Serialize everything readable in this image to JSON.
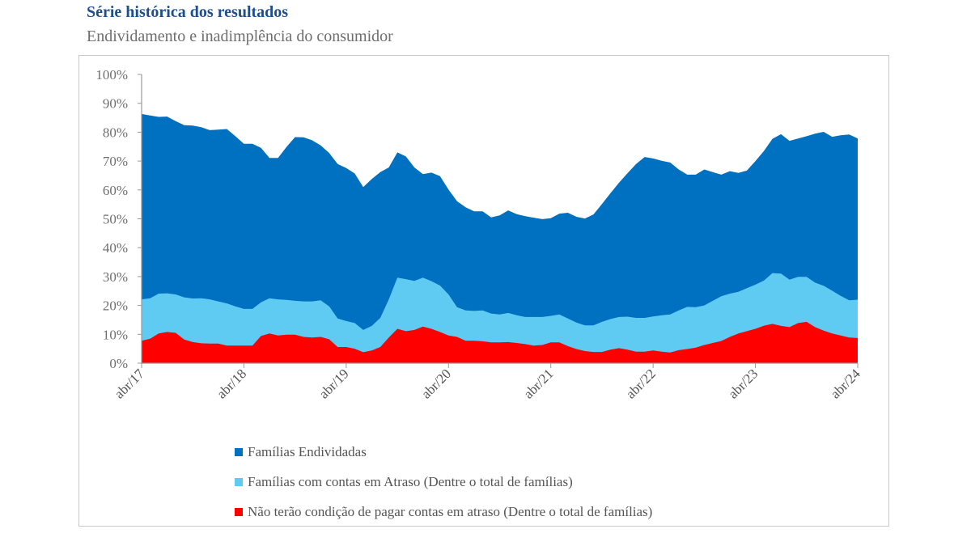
{
  "header": {
    "title": "Série histórica dos resultados",
    "subtitle": "Endividamento e inadimplência do consumidor"
  },
  "chart_data": {
    "type": "area",
    "title": "",
    "xlabel": "",
    "ylabel": "",
    "ylim": [
      0,
      100
    ],
    "y_ticks": [
      "0%",
      "10%",
      "20%",
      "30%",
      "40%",
      "50%",
      "60%",
      "70%",
      "80%",
      "90%",
      "100%"
    ],
    "x_tick_labels": [
      "abr/17",
      "abr/18",
      "abr/19",
      "abr/20",
      "abr/21",
      "abr/22",
      "abr/23",
      "abr/24"
    ],
    "grid": false,
    "legend_position": "bottom",
    "categories": [
      "abr/17",
      "mai/17",
      "jun/17",
      "jul/17",
      "ago/17",
      "set/17",
      "out/17",
      "nov/17",
      "dez/17",
      "jan/18",
      "fev/18",
      "mar/18",
      "abr/18",
      "mai/18",
      "jun/18",
      "jul/18",
      "ago/18",
      "set/18",
      "out/18",
      "nov/18",
      "dez/18",
      "jan/19",
      "fev/19",
      "mar/19",
      "abr/19",
      "mai/19",
      "jun/19",
      "jul/19",
      "ago/19",
      "set/19",
      "out/19",
      "nov/19",
      "dez/19",
      "jan/20",
      "fev/20",
      "mar/20",
      "abr/20",
      "mai/20",
      "jun/20",
      "jul/20",
      "ago/20",
      "set/20",
      "out/20",
      "nov/20",
      "dez/20",
      "jan/21",
      "fev/21",
      "mar/21",
      "abr/21",
      "mai/21",
      "jun/21",
      "jul/21",
      "ago/21",
      "set/21",
      "out/21",
      "nov/21",
      "dez/21",
      "jan/22",
      "fev/22",
      "mar/22",
      "abr/22",
      "mai/22",
      "jun/22",
      "jul/22",
      "ago/22",
      "set/22",
      "out/22",
      "nov/22",
      "dez/22",
      "jan/23",
      "fev/23",
      "mar/23",
      "abr/23",
      "mai/23",
      "jun/23",
      "jul/23",
      "ago/23",
      "set/23",
      "out/23",
      "nov/23",
      "dez/23",
      "jan/24",
      "fev/24",
      "mar/24",
      "abr/24"
    ],
    "series": [
      {
        "name": "Famílias Endividadas",
        "color": "#0070C0",
        "values": [
          86.3,
          85.8,
          85.3,
          85.4,
          83.8,
          82.4,
          82.3,
          81.7,
          80.7,
          80.9,
          81.1,
          78.6,
          76.0,
          76.0,
          74.6,
          71.1,
          71.1,
          74.9,
          78.3,
          78.2,
          77.2,
          75.4,
          72.8,
          69.0,
          67.6,
          65.7,
          61.0,
          63.8,
          66.2,
          67.8,
          73.0,
          71.6,
          67.8,
          65.5,
          66.0,
          64.8,
          60.1,
          56.1,
          54.0,
          52.6,
          52.6,
          50.5,
          51.2,
          52.9,
          51.6,
          50.9,
          50.4,
          49.9,
          50.2,
          51.8,
          52.1,
          50.7,
          50.1,
          51.5,
          55.1,
          58.9,
          62.5,
          65.8,
          69.0,
          71.4,
          70.9,
          70.1,
          69.5,
          67.1,
          65.3,
          65.3,
          67.1,
          66.2,
          65.3,
          66.5,
          65.9,
          66.7,
          70.0,
          73.5,
          77.7,
          79.3,
          77.0,
          77.8,
          78.6,
          79.5,
          80.1,
          78.4,
          78.9,
          79.2,
          77.8
        ]
      },
      {
        "name": "Famílias com contas em Atraso (Dentre o total de famílias)",
        "color": "#5FCBF3",
        "values": [
          22.1,
          22.5,
          24.1,
          24.2,
          23.8,
          22.8,
          22.4,
          22.5,
          22.1,
          21.4,
          20.7,
          19.7,
          18.8,
          18.8,
          21.1,
          22.5,
          22.1,
          21.9,
          21.6,
          21.4,
          21.4,
          21.8,
          19.7,
          15.5,
          14.6,
          13.9,
          11.5,
          12.9,
          15.7,
          22.1,
          29.6,
          29.1,
          28.5,
          29.6,
          28.4,
          26.9,
          23.8,
          19.4,
          18.3,
          18.1,
          18.3,
          17.2,
          16.9,
          17.4,
          16.6,
          16.0,
          16.0,
          16.0,
          16.4,
          16.9,
          15.5,
          14.1,
          13.1,
          13.1,
          14.3,
          15.3,
          16.0,
          16.1,
          15.7,
          15.7,
          16.2,
          16.6,
          16.9,
          18.3,
          19.5,
          19.4,
          20.0,
          21.6,
          23.2,
          24.1,
          24.7,
          26.0,
          27.2,
          28.6,
          31.2,
          31.0,
          28.9,
          29.9,
          29.9,
          27.9,
          26.8,
          25.1,
          23.3,
          21.8,
          22.0
        ]
      },
      {
        "name": "Não terão condição de pagar contas em atraso (Dentre o total de famílias)",
        "color": "#FF0000",
        "values": [
          7.8,
          8.5,
          10.3,
          10.8,
          10.5,
          8.2,
          7.3,
          6.9,
          6.8,
          6.8,
          6.1,
          6.1,
          6.1,
          6.1,
          9.4,
          10.3,
          9.6,
          9.9,
          9.9,
          9.1,
          8.9,
          9.1,
          8.3,
          5.6,
          5.6,
          5.0,
          3.8,
          4.4,
          5.6,
          8.9,
          11.9,
          11.1,
          11.5,
          12.7,
          11.9,
          10.8,
          9.6,
          9.1,
          7.8,
          7.8,
          7.6,
          7.2,
          7.2,
          7.3,
          7.0,
          6.6,
          6.1,
          6.3,
          7.2,
          7.2,
          5.9,
          4.9,
          4.2,
          3.9,
          3.9,
          4.7,
          5.2,
          4.7,
          4.0,
          4.0,
          4.4,
          4.0,
          3.7,
          4.5,
          4.9,
          5.4,
          6.3,
          7.0,
          7.7,
          9.1,
          10.3,
          11.1,
          11.9,
          13.0,
          13.6,
          12.9,
          12.5,
          13.9,
          14.3,
          12.5,
          11.3,
          10.3,
          9.6,
          8.9,
          8.7
        ]
      }
    ]
  }
}
